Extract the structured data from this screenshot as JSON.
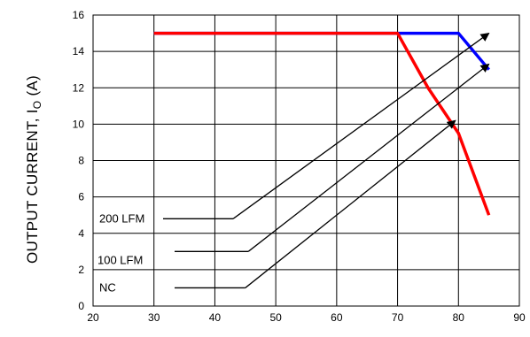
{
  "chart_data": {
    "type": "line",
    "title": "",
    "xlabel": "",
    "ylabel": "OUTPUT CURRENT, I",
    "ylabel_subscript": "O",
    "ylabel_unit": " (A)",
    "xlim": [
      20,
      90
    ],
    "ylim": [
      0,
      16
    ],
    "x_ticks": [
      20,
      30,
      40,
      50,
      60,
      70,
      80,
      90
    ],
    "y_ticks": [
      0,
      2,
      4,
      6,
      8,
      10,
      12,
      14,
      16
    ],
    "grid": true,
    "series": [
      {
        "color": "#0000ff",
        "x": [
          30,
          70,
          80,
          85
        ],
        "y": [
          15,
          15,
          15,
          13
        ]
      },
      {
        "color": "#ff0000",
        "x": [
          30,
          70,
          75,
          80,
          85
        ],
        "y": [
          15,
          15,
          12,
          9.5,
          5
        ]
      }
    ],
    "annotations": [
      {
        "text": "200 LFM",
        "leader": [
          [
            43,
            4.8
          ],
          [
            85,
            15
          ]
        ]
      },
      {
        "text": "100 LFM",
        "leader": [
          [
            45.5,
            3
          ],
          [
            85,
            13.3
          ]
        ]
      },
      {
        "text": "NC",
        "leader": [
          [
            45,
            1
          ],
          [
            79.5,
            10.2
          ]
        ]
      }
    ]
  }
}
